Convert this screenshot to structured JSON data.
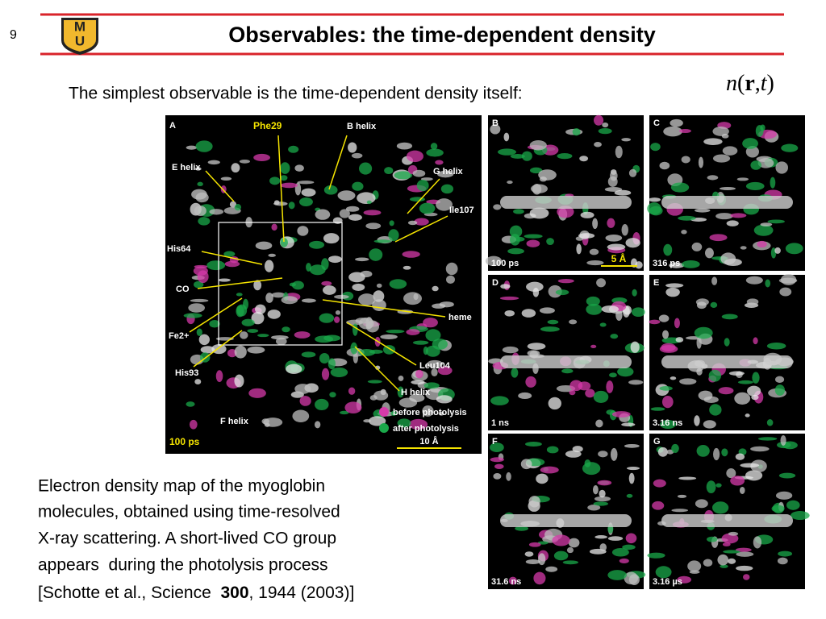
{
  "slide_number": "9",
  "logo": {
    "letters": [
      "M",
      "U"
    ]
  },
  "title": "Observables: the time-dependent density",
  "intro": "The simplest observable is the time-dependent density itself:",
  "formula": [
    "n",
    "(",
    "r",
    ",",
    "t",
    ")"
  ],
  "panel_a": {
    "letter": "A",
    "labels": [
      "Phe29",
      "B helix",
      "E helix",
      "G helix",
      "Ile107",
      "His64",
      "CO",
      "heme",
      "Fe2+",
      "Leu104",
      "His93",
      "H helix",
      "F helix"
    ],
    "time": "100 ps",
    "legend": [
      "before photolysis",
      "after photolysis"
    ],
    "scale": "10 Å"
  },
  "panels": [
    {
      "letter": "B",
      "time": "100 ps"
    },
    {
      "letter": "C",
      "time": "316 ps"
    },
    {
      "letter": "D",
      "time": "1 ns"
    },
    {
      "letter": "E",
      "time": "3.16 ns"
    },
    {
      "letter": "F",
      "time": "31.6 ns"
    },
    {
      "letter": "G",
      "time": "3.16 µs"
    }
  ],
  "panel_b_scale": "5 Å",
  "caption": {
    "lines": [
      "Electron density map of the myoglobin",
      "molecules, obtained using time-resolved",
      "X-ray scattering. A short-lived CO group",
      "appears  during the photolysis process"
    ],
    "citation": [
      "[Schotte et al., Science  ",
      "300",
      ", 1944 (2003)]"
    ]
  }
}
